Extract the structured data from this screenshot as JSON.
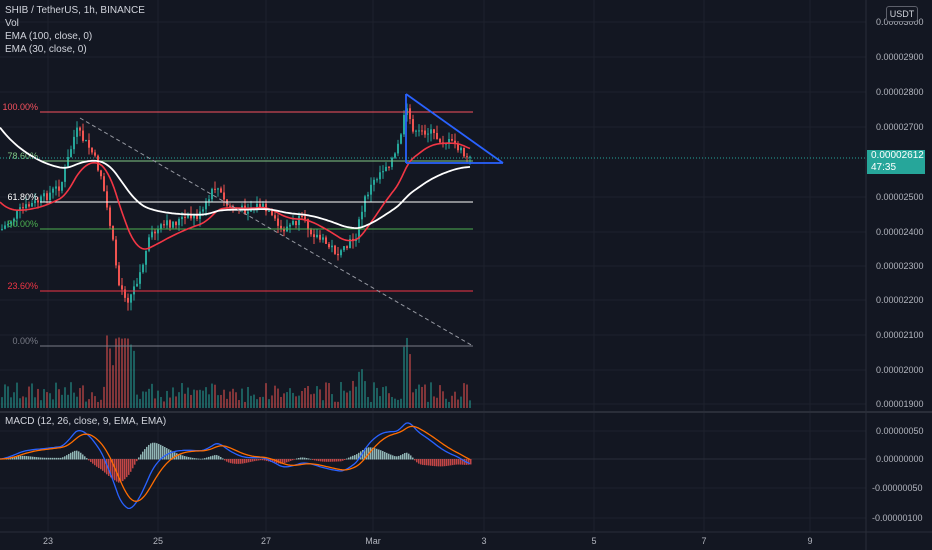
{
  "legend": {
    "symbol": "SHIB / TetherUS, 1h, BINANCE",
    "vol": "Vol",
    "ema100": "EMA (100, close, 0)",
    "ema30": "EMA (30, close, 0)"
  },
  "macd_legend": "MACD (12, 26, close, 9, EMA, EMA)",
  "unit_badge": "USDT",
  "last_price": {
    "value": "0.00002612",
    "countdown": "47:35"
  },
  "colors": {
    "background": "#131722",
    "up": "#26a69a",
    "down": "#ef5350",
    "ema100": "#ffffff",
    "ema30": "#f23645",
    "triangle": "#2962ff",
    "macd": "#2962ff",
    "signal": "#ff6d00",
    "fib_100": "#f7525f",
    "fib_786": "#81c784",
    "fib_618": "#ffffff",
    "fib_50": "#4caf50",
    "fib_236": "#f23645",
    "fib_0": "#787b86"
  },
  "price_axis": {
    "ticks": [
      "0.00003000",
      "0.00002900",
      "0.00002800",
      "0.00002700",
      "0.00002500",
      "0.00002400",
      "0.00002300",
      "0.00002200",
      "0.00002100",
      "0.00002000",
      "0.00001900"
    ]
  },
  "macd_axis": {
    "ticks": [
      "0.00000050",
      "0.00000000",
      "-0.00000050",
      "-0.00000100"
    ]
  },
  "time_axis": {
    "ticks": [
      "23",
      "25",
      "27",
      "Mar",
      "3",
      "5",
      "7",
      "9"
    ]
  },
  "fib_levels": [
    {
      "label": "100.00%",
      "key": "fib_100"
    },
    {
      "label": "78.60%",
      "key": "fib_786"
    },
    {
      "label": "61.80%",
      "key": "fib_618"
    },
    {
      "label": "50.00%",
      "key": "fib_50"
    },
    {
      "label": "23.60%",
      "key": "fib_236"
    },
    {
      "label": "0.00%",
      "key": "fib_0"
    }
  ]
}
